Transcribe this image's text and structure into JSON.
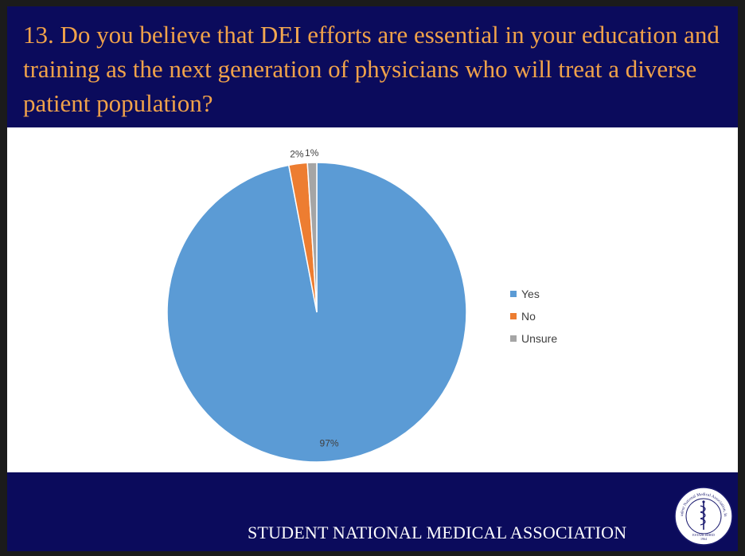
{
  "slide": {
    "title_prefix": "13. Do you believe that ",
    "title_emphasis": "DEI",
    "title_suffix": " efforts are essential in your education and training as the next generation of physicians who will treat a diverse patient population?",
    "footer": "STUDENT  NATIONAL MEDICAL ASSOCIATION",
    "seal_text_top": "Student National Medical Association, Inc.",
    "seal_text_bottom": "ESTABLISHED",
    "seal_year": "1964"
  },
  "chart_data": {
    "type": "pie",
    "categories": [
      "Yes",
      "No",
      "Unsure"
    ],
    "values": [
      97,
      2,
      1
    ],
    "labels": [
      "97%",
      "2%",
      "1%"
    ],
    "colors": [
      "#5b9bd5",
      "#ed7d31",
      "#a5a5a5"
    ],
    "legend_position": "right"
  }
}
